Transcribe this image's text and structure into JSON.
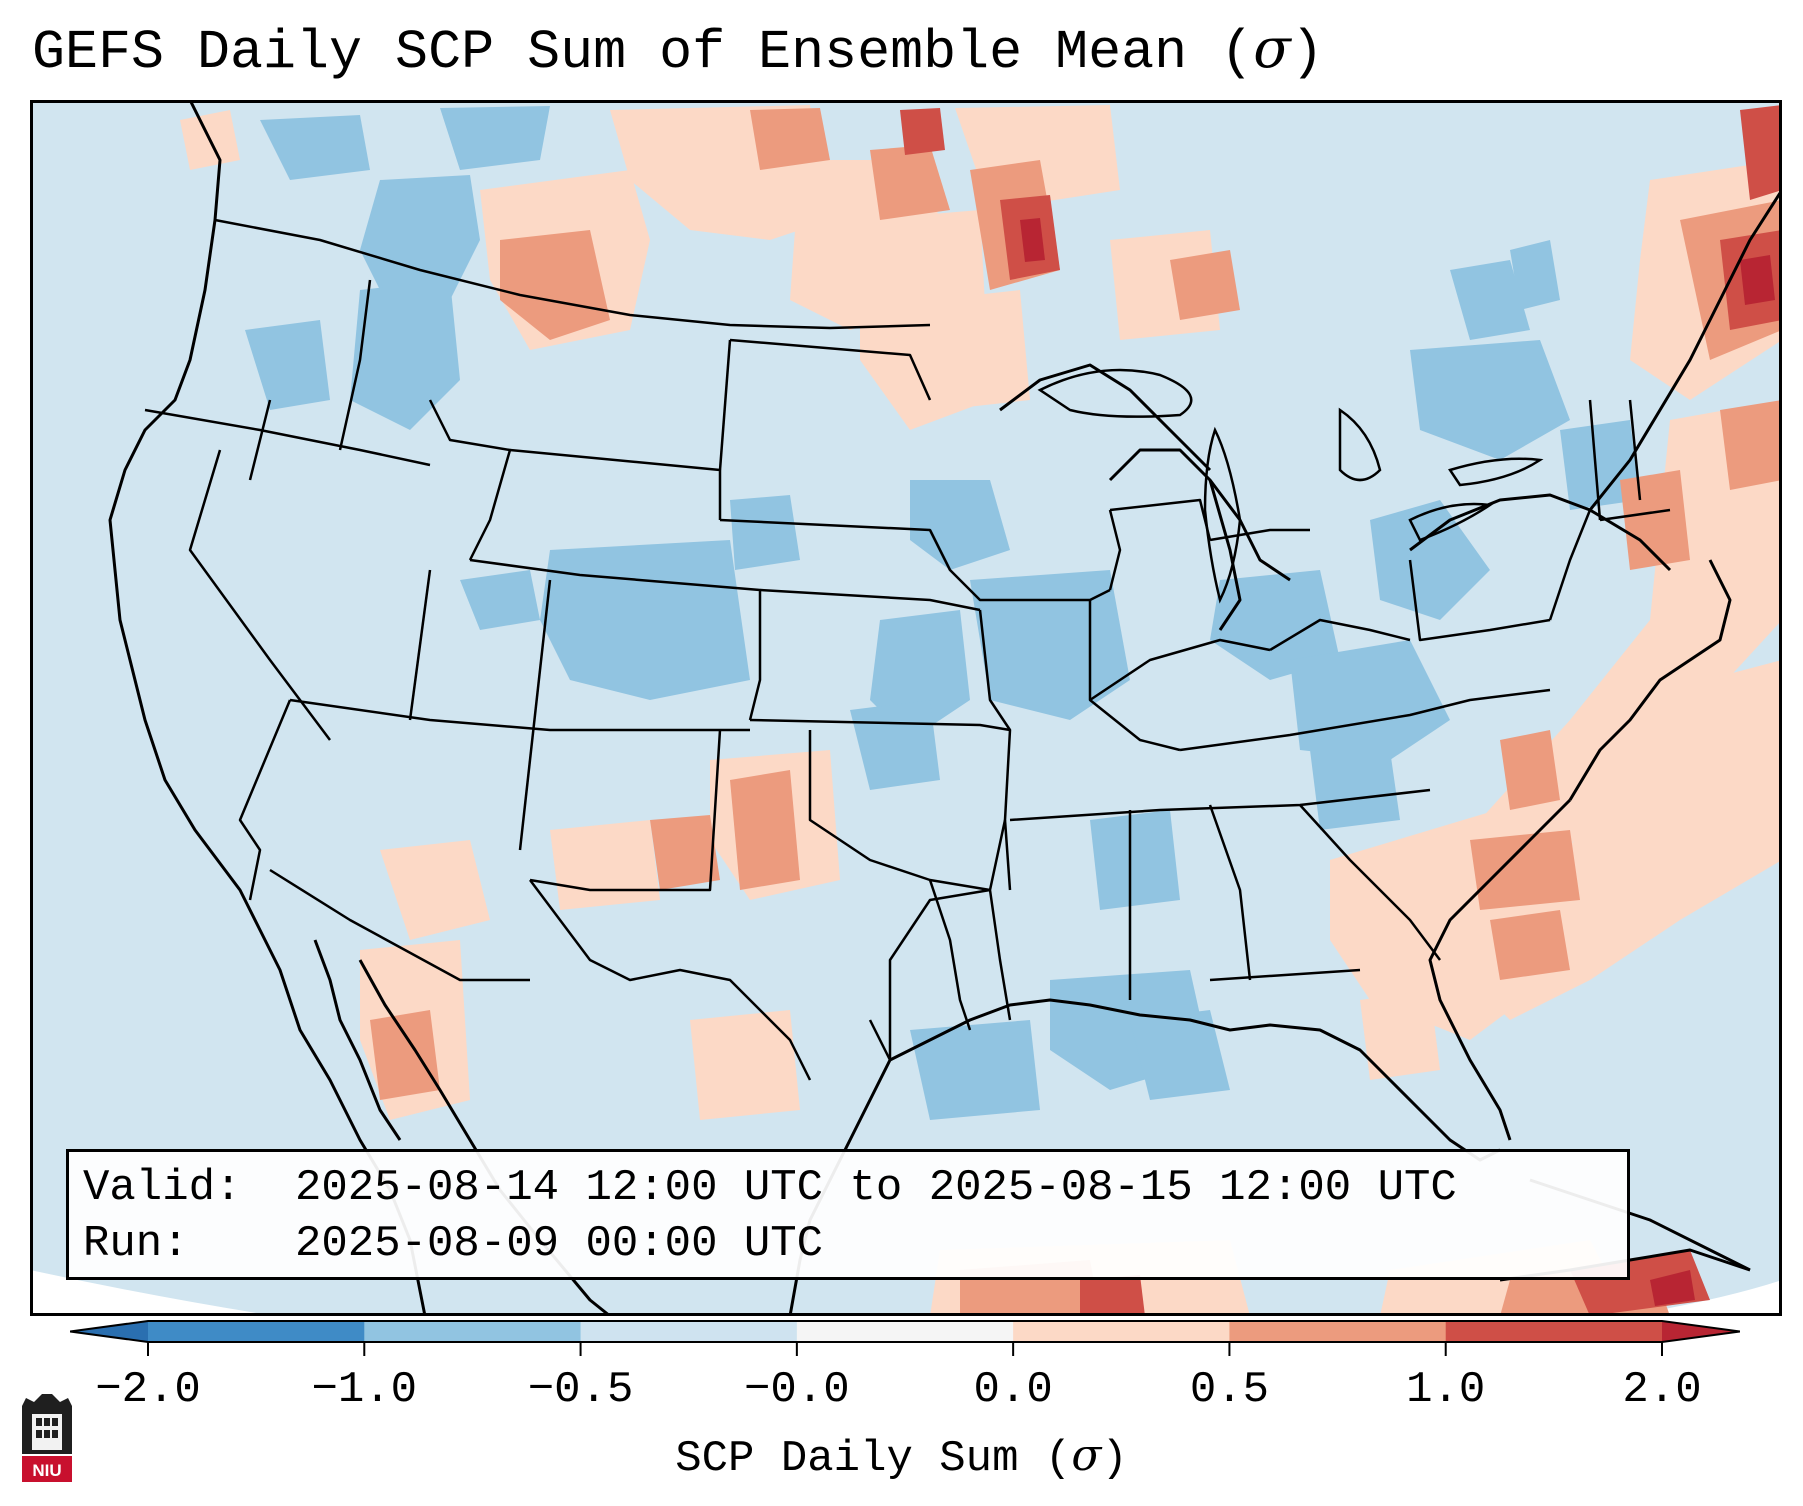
{
  "title": {
    "text": "GEFS Daily SCP Sum of Ensemble Mean (",
    "symbol": "σ",
    "close": ")"
  },
  "legend": {
    "valid_key": "Valid:",
    "valid_value": "2025-08-14 12:00 UTC to 2025-08-15 12:00 UTC",
    "run_key": "Run:",
    "run_value": "2025-08-09 00:00 UTC"
  },
  "colorbar": {
    "label_text": "SCP Daily Sum (",
    "label_symbol": "σ",
    "label_close": ")",
    "ticks": [
      "−2.0",
      "−1.0",
      "−0.5",
      "−0.0",
      "0.0",
      "0.5",
      "1.0",
      "2.0"
    ],
    "colors": [
      "#3f8bc6",
      "#91c4e1",
      "#cfe3f0",
      "#f5f5f5",
      "#fcd9c6",
      "#ec9b7e",
      "#cf4f47"
    ],
    "extend_low_color": "#2a6fb0",
    "extend_high_color": "#b82533"
  },
  "map": {
    "base_color": "#d1e5f0",
    "ocean_outside_color": "#ffffff",
    "region": "Contiguous United States",
    "field": "SCP Daily Sum anomaly"
  },
  "logo": {
    "text": "NIU"
  }
}
